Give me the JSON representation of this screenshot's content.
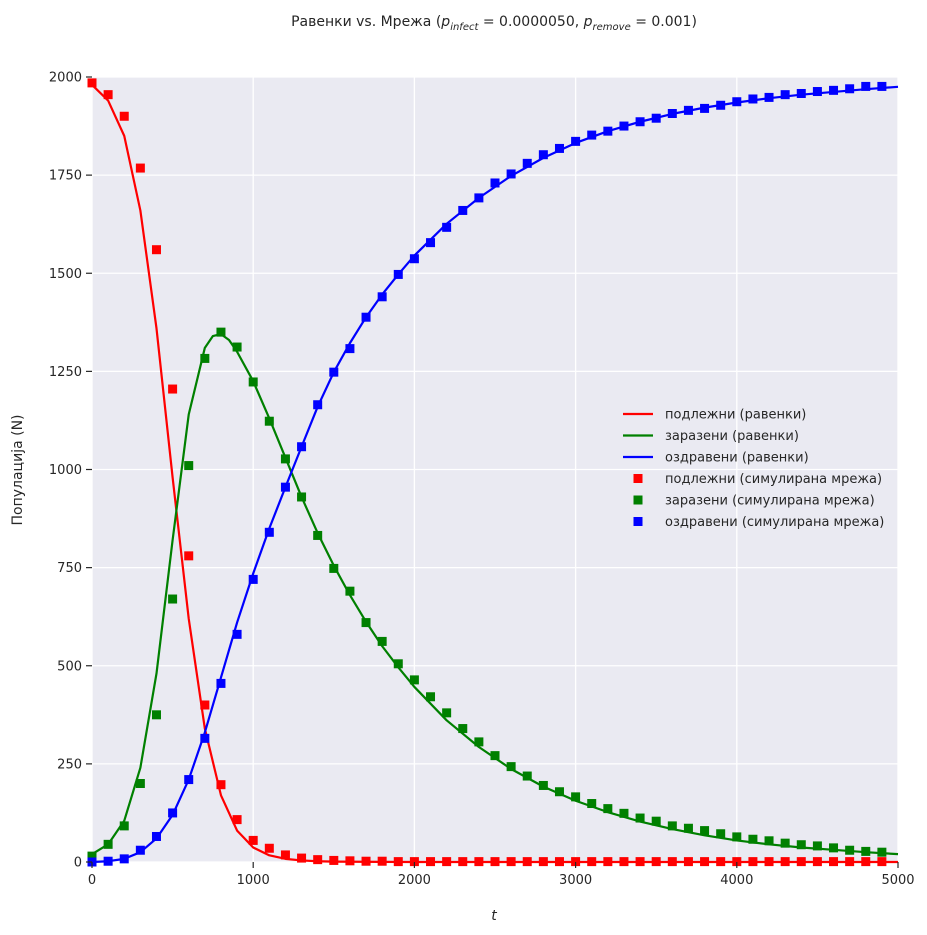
{
  "chart_data": {
    "type": "line",
    "title_parts": {
      "prefix": "Равенки vs. Мрежа (",
      "p1_base": "p",
      "p1_sub": "infect",
      "p1_value": " = 0.0000050, ",
      "p2_base": "p",
      "p2_sub": "remove",
      "p2_value": " = 0.001)"
    },
    "xlabel": "t",
    "ylabel": "Популација (N)",
    "xlim": [
      0,
      5000
    ],
    "ylim": [
      0,
      2000
    ],
    "xticks": [
      "0",
      "1000",
      "2000",
      "3000",
      "4000",
      "5000"
    ],
    "xtick_values": [
      0,
      1000,
      2000,
      3000,
      4000,
      5000
    ],
    "yticks": [
      "0",
      "250",
      "500",
      "750",
      "1000",
      "1250",
      "1500",
      "1750",
      "2000"
    ],
    "ytick_values": [
      0,
      250,
      500,
      750,
      1000,
      1250,
      1500,
      1750,
      2000
    ],
    "grid": true,
    "legend_position": "center-right",
    "series": [
      {
        "name": "подлежни (равенки)",
        "kind": "line",
        "color": "#ff0000",
        "x": [
          0,
          100,
          200,
          300,
          400,
          500,
          600,
          700,
          800,
          900,
          1000,
          1100,
          1200,
          1300,
          1400,
          1500,
          2000,
          3000,
          4000,
          5000
        ],
        "y": [
          1980,
          1940,
          1850,
          1660,
          1360,
          980,
          620,
          340,
          170,
          80,
          37,
          17,
          8,
          4,
          2,
          1,
          0,
          0,
          0,
          0
        ]
      },
      {
        "name": "заразени (равенки)",
        "kind": "line",
        "color": "#008000",
        "x": [
          0,
          100,
          200,
          300,
          400,
          500,
          600,
          700,
          750,
          800,
          850,
          900,
          1000,
          1100,
          1200,
          1300,
          1400,
          1500,
          1600,
          1700,
          1800,
          1900,
          2000,
          2200,
          2400,
          2600,
          2800,
          3000,
          3200,
          3400,
          3600,
          3800,
          4000,
          4200,
          4400,
          4600,
          4800,
          5000
        ],
        "y": [
          20,
          45,
          105,
          240,
          480,
          820,
          1140,
          1310,
          1340,
          1345,
          1330,
          1300,
          1225,
          1130,
          1030,
          930,
          838,
          755,
          680,
          612,
          550,
          496,
          446,
          361,
          293,
          237,
          192,
          156,
          127,
          103,
          84,
          68,
          55,
          45,
          37,
          31,
          25,
          20
        ]
      },
      {
        "name": "оздравени (равенки)",
        "kind": "line",
        "color": "#0000ff",
        "x": [
          0,
          100,
          200,
          300,
          400,
          500,
          600,
          700,
          800,
          900,
          1000,
          1100,
          1200,
          1300,
          1400,
          1500,
          1600,
          1700,
          1800,
          1900,
          2000,
          2200,
          2400,
          2600,
          2800,
          3000,
          3200,
          3400,
          3600,
          3800,
          4000,
          4200,
          4400,
          4600,
          4800,
          5000
        ],
        "y": [
          0,
          2,
          8,
          25,
          60,
          120,
          210,
          330,
          470,
          610,
          735,
          850,
          955,
          1058,
          1160,
          1248,
          1322,
          1388,
          1446,
          1497,
          1545,
          1626,
          1692,
          1748,
          1794,
          1832,
          1862,
          1886,
          1906,
          1922,
          1935,
          1946,
          1955,
          1962,
          1969,
          1975
        ]
      },
      {
        "name": "подлежни (симулирана мрежа)",
        "kind": "scatter",
        "color": "#ff0000",
        "x": [
          0,
          100,
          200,
          300,
          400,
          500,
          600,
          700,
          800,
          900,
          1000,
          1100,
          1200,
          1300,
          1400,
          1500,
          1600,
          1700,
          1800,
          1900,
          2000,
          2100,
          2200,
          2300,
          2400,
          2500,
          2600,
          2700,
          2800,
          2900,
          3000,
          3100,
          3200,
          3300,
          3400,
          3500,
          3600,
          3700,
          3800,
          3900,
          4000,
          4100,
          4200,
          4300,
          4400,
          4500,
          4600,
          4700,
          4800,
          4900
        ],
        "y": [
          1985,
          1955,
          1900,
          1768,
          1560,
          1205,
          780,
          400,
          197,
          108,
          55,
          35,
          18,
          10,
          6,
          4,
          3,
          2,
          2,
          1,
          1,
          1,
          1,
          1,
          1,
          1,
          1,
          1,
          1,
          1,
          1,
          1,
          1,
          1,
          1,
          1,
          1,
          1,
          1,
          1,
          1,
          1,
          1,
          1,
          1,
          1,
          1,
          1,
          1,
          1
        ]
      },
      {
        "name": "заразени (симулирана мрежа)",
        "kind": "scatter",
        "color": "#008000",
        "x": [
          0,
          100,
          200,
          300,
          400,
          500,
          600,
          700,
          800,
          900,
          1000,
          1100,
          1200,
          1300,
          1400,
          1500,
          1600,
          1700,
          1800,
          1900,
          2000,
          2100,
          2200,
          2300,
          2400,
          2500,
          2600,
          2700,
          2800,
          2900,
          3000,
          3100,
          3200,
          3300,
          3400,
          3500,
          3600,
          3700,
          3800,
          3900,
          4000,
          4100,
          4200,
          4300,
          4400,
          4500,
          4600,
          4700,
          4800,
          4900
        ],
        "y": [
          15,
          45,
          92,
          200,
          375,
          670,
          1010,
          1283,
          1350,
          1312,
          1223,
          1123,
          1027,
          930,
          832,
          748,
          690,
          610,
          562,
          505,
          464,
          421,
          380,
          340,
          306,
          271,
          243,
          219,
          195,
          179,
          166,
          149,
          136,
          124,
          112,
          104,
          92,
          86,
          80,
          72,
          64,
          58,
          54,
          48,
          44,
          41,
          36,
          30,
          27,
          25
        ]
      },
      {
        "name": "оздравени (симулирана мрежа)",
        "kind": "scatter",
        "color": "#0000ff",
        "x": [
          0,
          100,
          200,
          300,
          400,
          500,
          600,
          700,
          800,
          900,
          1000,
          1100,
          1200,
          1300,
          1400,
          1500,
          1600,
          1700,
          1800,
          1900,
          2000,
          2100,
          2200,
          2300,
          2400,
          2500,
          2600,
          2700,
          2800,
          2900,
          3000,
          3100,
          3200,
          3300,
          3400,
          3500,
          3600,
          3700,
          3800,
          3900,
          4000,
          4100,
          4200,
          4300,
          4400,
          4500,
          4600,
          4700,
          4800,
          4900
        ],
        "y": [
          0,
          2,
          8,
          30,
          65,
          125,
          210,
          315,
          455,
          580,
          720,
          840,
          955,
          1058,
          1165,
          1248,
          1308,
          1388,
          1440,
          1497,
          1537,
          1578,
          1617,
          1660,
          1692,
          1730,
          1753,
          1780,
          1802,
          1818,
          1836,
          1852,
          1862,
          1875,
          1886,
          1895,
          1907,
          1915,
          1920,
          1928,
          1937,
          1944,
          1948,
          1955,
          1958,
          1963,
          1966,
          1970,
          1976,
          1976
        ]
      }
    ]
  }
}
